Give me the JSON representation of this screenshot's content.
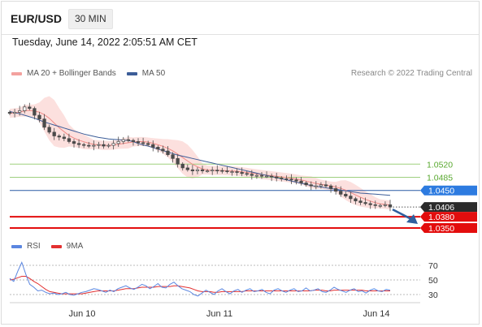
{
  "header": {
    "symbol": "EUR/USD",
    "interval": "30 MIN"
  },
  "timestamp": "Tuesday, June 14, 2022 2:05:51 AM CET",
  "credit": "Research © 2022 Trading Central",
  "colors": {
    "bollinger_fill": "#fbd5d3",
    "ma20": "#f08a86",
    "ma50": "#3c5d98",
    "candle": "#4a4a4a",
    "resistance": "#9fd07f",
    "resistance_text": "#58a82e",
    "pivot": "#2a5aa5",
    "pivot_tag": "#2d7be0",
    "support": "#e30d0d",
    "price_tag": "#2b2b2b",
    "arrow": "#2f5f9e",
    "rsi": "#5b86e0",
    "rsi_ma": "#e33030"
  },
  "chart_data": [
    {
      "type": "candlestick",
      "title": "EUR/USD",
      "interval": "30 MIN",
      "legend": [
        {
          "name": "MA 20 + Bollinger Bands",
          "color": "#f08a86"
        },
        {
          "name": "MA 50",
          "color": "#3c5d98"
        }
      ],
      "legend_position": "top-left",
      "x_ticks": [
        "Jun 10",
        "Jun 11",
        "Jun 14"
      ],
      "ylim": [
        1.0335,
        1.0745
      ],
      "price": [
        1.0655,
        1.0658,
        1.0662,
        1.0672,
        1.0668,
        1.065,
        1.064,
        1.0618,
        1.0605,
        1.0595,
        1.0592,
        1.0588,
        1.058,
        1.0575,
        1.0572,
        1.057,
        1.0568,
        1.057,
        1.0572,
        1.0568,
        1.057,
        1.0575,
        1.058,
        1.0585,
        1.0583,
        1.058,
        1.0577,
        1.0575,
        1.0572,
        1.0565,
        1.056,
        1.0555,
        1.0545,
        1.0535,
        1.052,
        1.051,
        1.0505,
        1.0502,
        1.0505,
        1.0502,
        1.0502,
        1.0504,
        1.0503,
        1.0502,
        1.05,
        1.05,
        1.0498,
        1.0495,
        1.0493,
        1.049,
        1.049,
        1.0488,
        1.0488,
        1.0486,
        1.0483,
        1.0481,
        1.048,
        1.0478,
        1.0475,
        1.047,
        1.0465,
        1.0462,
        1.0462,
        1.0465,
        1.0462,
        1.0455,
        1.0448,
        1.044,
        1.0435,
        1.0428,
        1.0422,
        1.0418,
        1.0415,
        1.0412,
        1.041,
        1.041,
        1.0412,
        1.0406
      ],
      "ma50": [
        1.066,
        1.0657,
        1.0654,
        1.065,
        1.0646,
        1.0642,
        1.0637,
        1.0632,
        1.0628,
        1.0624,
        1.062,
        1.0616,
        1.0612,
        1.0608,
        1.0604,
        1.06,
        1.0597,
        1.0594,
        1.0591,
        1.0589,
        1.0587,
        1.0586,
        1.0585,
        1.0584,
        1.0583,
        1.058,
        1.0575,
        1.0571,
        1.0568,
        1.0564,
        1.056,
        1.0556,
        1.0552,
        1.0548,
        1.0544,
        1.0541,
        1.0538,
        1.0535,
        1.0532,
        1.0529,
        1.0526,
        1.0523,
        1.052,
        1.0517,
        1.0514,
        1.0511,
        1.0508,
        1.0505,
        1.0502,
        1.0499,
        1.0496,
        1.0493,
        1.049,
        1.0487,
        1.0484,
        1.0481,
        1.0478,
        1.0475,
        1.0472,
        1.0469,
        1.0466,
        1.0463,
        1.0461,
        1.0459,
        1.0457,
        1.0455,
        1.0453,
        1.0451,
        1.0449,
        1.0447,
        1.0445,
        1.0443,
        1.0442,
        1.0441,
        1.044,
        1.0439,
        1.0438,
        1.0437
      ],
      "levels": [
        {
          "value": 1.052,
          "label": "1.0520",
          "kind": "resistance"
        },
        {
          "value": 1.0485,
          "label": "1.0485",
          "kind": "resistance"
        },
        {
          "value": 1.045,
          "label": "1.0450",
          "kind": "pivot"
        },
        {
          "value": 1.0406,
          "label": "1.0406",
          "kind": "last_price"
        },
        {
          "value": 1.038,
          "label": "1.0380",
          "kind": "support"
        },
        {
          "value": 1.035,
          "label": "1.0350",
          "kind": "support"
        }
      ]
    },
    {
      "type": "line",
      "title": "RSI",
      "legend": [
        {
          "name": "RSI",
          "color": "#5b86e0"
        },
        {
          "name": "9MA",
          "color": "#e33030"
        }
      ],
      "legend_position": "top-left",
      "ylim": [
        20,
        80
      ],
      "y_ticks": [
        70,
        50,
        30
      ],
      "rsi": [
        52,
        48,
        62,
        74,
        58,
        44,
        40,
        35,
        36,
        33,
        31,
        32,
        30,
        31,
        33,
        30,
        29,
        31,
        33,
        34,
        36,
        38,
        37,
        35,
        33,
        36,
        34,
        38,
        40,
        42,
        39,
        37,
        40,
        44,
        42,
        38,
        41,
        45,
        40,
        39,
        44,
        47,
        42,
        38,
        36,
        34,
        30,
        28,
        32,
        36,
        33,
        30,
        35,
        38,
        34,
        31,
        35,
        37,
        33,
        36,
        38,
        34,
        35,
        37,
        33,
        31,
        36,
        38,
        35,
        33,
        36,
        38,
        34,
        35,
        39,
        35,
        36,
        38,
        34,
        33,
        36,
        40,
        37,
        35,
        33,
        36,
        38,
        34,
        35,
        32,
        36,
        38,
        35,
        34,
        37,
        36
      ],
      "rsi_ma": [
        50,
        51,
        53,
        55,
        55,
        52,
        48,
        45,
        41,
        37,
        34,
        33,
        32,
        31,
        31,
        31,
        31,
        31,
        31,
        32,
        33,
        34,
        35,
        35,
        35,
        35,
        35,
        36,
        37,
        38,
        38,
        38,
        39,
        40,
        40,
        40,
        40,
        41,
        41,
        41,
        41,
        42,
        42,
        41,
        40,
        39,
        37,
        35,
        34,
        34,
        34,
        33,
        33,
        34,
        34,
        34,
        34,
        34,
        34,
        35,
        35,
        35,
        35,
        35,
        35,
        35,
        35,
        35,
        35,
        35,
        35,
        35,
        35,
        35,
        35,
        35,
        36,
        36,
        36,
        35,
        35,
        36,
        36,
        36,
        36,
        36,
        36,
        36,
        36,
        35,
        35,
        35,
        35,
        35,
        35,
        35
      ]
    }
  ]
}
